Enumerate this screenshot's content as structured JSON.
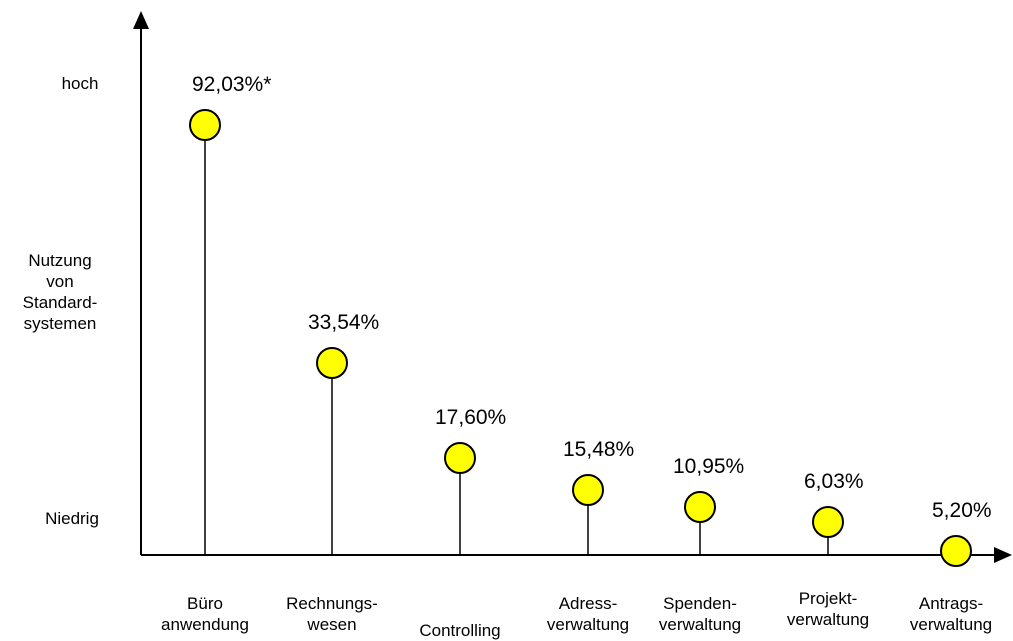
{
  "chart_data": {
    "type": "lollipop",
    "categories": [
      [
        "Büro",
        "anwendung"
      ],
      [
        "Rechnungs-",
        "wesen"
      ],
      [
        "Controlling"
      ],
      [
        "Adress-",
        "verwaltung"
      ],
      [
        "Spenden-",
        "verwaltung"
      ],
      [
        "Projekt-",
        "verwaltung"
      ],
      [
        "Antrags-",
        "verwaltung"
      ]
    ],
    "values": [
      92.03,
      33.54,
      17.6,
      15.48,
      10.95,
      6.03,
      5.2
    ],
    "value_labels": [
      "92,03%*",
      "33,54%",
      "17,60%",
      "15,48%",
      "10,95%",
      "6,03%",
      "5,20%"
    ],
    "y_axis_labels": {
      "high": "hoch",
      "middle": [
        "Nutzung",
        "von",
        "Standard-",
        "systemen"
      ],
      "low": "Niedrig"
    },
    "marker_color": "#ffff00",
    "grid": false,
    "legend": "none"
  }
}
